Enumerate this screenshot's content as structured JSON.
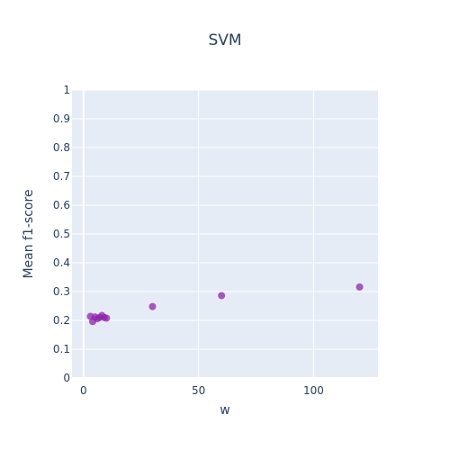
{
  "chart_data": {
    "type": "scatter",
    "title": "SVM",
    "xlabel": "w",
    "ylabel": "Mean f1-score",
    "xlim": [
      -5,
      128
    ],
    "ylim": [
      0,
      1
    ],
    "x_ticks": [
      0,
      50,
      100
    ],
    "y_ticks": [
      0,
      0.1,
      0.2,
      0.3,
      0.4,
      0.5,
      0.6,
      0.7,
      0.8,
      0.9,
      1
    ],
    "grid": true,
    "series": [
      {
        "color": "#8e24aa",
        "points": [
          {
            "x": 3,
            "y": 0.214
          },
          {
            "x": 4,
            "y": 0.196
          },
          {
            "x": 5,
            "y": 0.212
          },
          {
            "x": 6,
            "y": 0.206
          },
          {
            "x": 7,
            "y": 0.21
          },
          {
            "x": 8,
            "y": 0.217
          },
          {
            "x": 9,
            "y": 0.21
          },
          {
            "x": 10,
            "y": 0.208
          },
          {
            "x": 30,
            "y": 0.248
          },
          {
            "x": 60,
            "y": 0.286
          },
          {
            "x": 120,
            "y": 0.316
          }
        ]
      }
    ]
  },
  "colors": {
    "plot_background": "#e5ecf6",
    "grid": "#ffffff",
    "text": "#2a3f5f"
  }
}
